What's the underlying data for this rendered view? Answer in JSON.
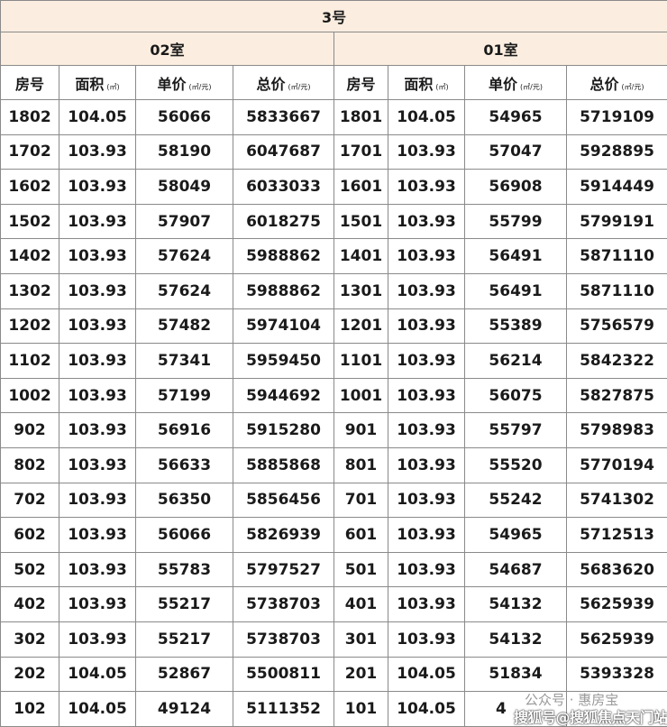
{
  "title": "3号",
  "groups": [
    "02室",
    "01室"
  ],
  "headers": {
    "room": "房号",
    "area": "面积",
    "area_unit": "(㎡)",
    "unit_price": "单价",
    "unit_price_unit": "(㎡/元)",
    "total": "总价",
    "total_unit": "(㎡/元)"
  },
  "rows": [
    [
      "1802",
      "104.05",
      "56066",
      "5833667",
      "1801",
      "104.05",
      "54965",
      "5719109"
    ],
    [
      "1702",
      "103.93",
      "58190",
      "6047687",
      "1701",
      "103.93",
      "57047",
      "5928895"
    ],
    [
      "1602",
      "103.93",
      "58049",
      "6033033",
      "1601",
      "103.93",
      "56908",
      "5914449"
    ],
    [
      "1502",
      "103.93",
      "57907",
      "6018275",
      "1501",
      "103.93",
      "55799",
      "5799191"
    ],
    [
      "1402",
      "103.93",
      "57624",
      "5988862",
      "1401",
      "103.93",
      "56491",
      "5871110"
    ],
    [
      "1302",
      "103.93",
      "57624",
      "5988862",
      "1301",
      "103.93",
      "56491",
      "5871110"
    ],
    [
      "1202",
      "103.93",
      "57482",
      "5974104",
      "1201",
      "103.93",
      "55389",
      "5756579"
    ],
    [
      "1102",
      "103.93",
      "57341",
      "5959450",
      "1101",
      "103.93",
      "56214",
      "5842322"
    ],
    [
      "1002",
      "103.93",
      "57199",
      "5944692",
      "1001",
      "103.93",
      "56075",
      "5827875"
    ],
    [
      "902",
      "103.93",
      "56916",
      "5915280",
      "901",
      "103.93",
      "55797",
      "5798983"
    ],
    [
      "802",
      "103.93",
      "56633",
      "5885868",
      "801",
      "103.93",
      "55520",
      "5770194"
    ],
    [
      "702",
      "103.93",
      "56350",
      "5856456",
      "701",
      "103.93",
      "55242",
      "5741302"
    ],
    [
      "602",
      "103.93",
      "56066",
      "5826939",
      "601",
      "103.93",
      "54965",
      "5712513"
    ],
    [
      "502",
      "103.93",
      "55783",
      "5797527",
      "501",
      "103.93",
      "54687",
      "5683620"
    ],
    [
      "402",
      "103.93",
      "55217",
      "5738703",
      "401",
      "103.93",
      "54132",
      "5625939"
    ],
    [
      "302",
      "103.93",
      "55217",
      "5738703",
      "301",
      "103.93",
      "54132",
      "5625939"
    ],
    [
      "202",
      "104.05",
      "52867",
      "5500811",
      "201",
      "104.05",
      "51834",
      "5393328"
    ],
    [
      "102",
      "104.05",
      "49124",
      "5111352",
      "101",
      "104.05",
      "4",
      ""
    ]
  ],
  "watermark": "搜狐号@搜狐焦点天门站",
  "watermark2": "公众号 · 惠房宝"
}
